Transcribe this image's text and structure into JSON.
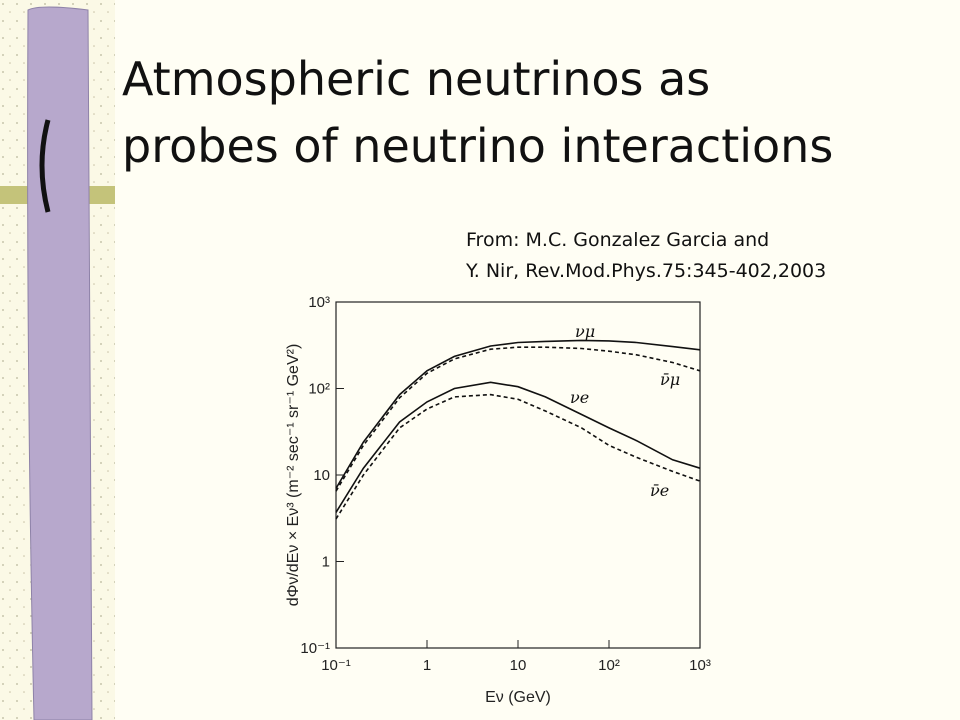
{
  "slide": {
    "title": [
      "Atmospheric neutrinos as",
      "probes of neutrino interactions"
    ],
    "source": [
      "From:  M.C. Gonzalez Garcia and",
      "Y. Nir, Rev.Mod.Phys.75:345-402,2003"
    ]
  },
  "chart_data": {
    "type": "line",
    "log_x": true,
    "log_y": true,
    "x_label": "Eν (GeV)",
    "y_label": "dΦν/dEν × Eν³ (m⁻² sec⁻¹ sr⁻¹ GeV²)",
    "x": [
      0.1,
      0.2,
      0.5,
      1,
      2,
      5,
      10,
      20,
      50,
      100,
      200,
      500,
      1000
    ],
    "series": [
      {
        "name": "νμ",
        "color": "#111111",
        "dash": false,
        "values": [
          7,
          24,
          85,
          160,
          235,
          310,
          340,
          350,
          360,
          355,
          340,
          305,
          280
        ]
      },
      {
        "name": "ν̄μ",
        "color": "#111111",
        "dash": true,
        "values": [
          6.5,
          22,
          78,
          150,
          220,
          285,
          300,
          300,
          290,
          270,
          245,
          200,
          160
        ]
      },
      {
        "name": "νe",
        "color": "#111111",
        "dash": false,
        "values": [
          3.7,
          12,
          41,
          70,
          100,
          118,
          105,
          80,
          50,
          35,
          25,
          15,
          12
        ]
      },
      {
        "name": "ν̄e",
        "color": "#111111",
        "dash": true,
        "values": [
          3.1,
          10,
          35,
          58,
          80,
          85,
          75,
          55,
          35,
          22,
          16,
          11,
          8.5
        ]
      }
    ],
    "xlim": [
      0.1,
      1000
    ],
    "ylim": [
      0.1,
      1000
    ],
    "xticks": [
      {
        "value": 0.1,
        "label": "10⁻¹"
      },
      1,
      10,
      {
        "value": 100,
        "label": "10²"
      },
      {
        "value": 1000,
        "label": "10³"
      }
    ],
    "yticks": [
      {
        "value": 0.1,
        "label": "10⁻¹"
      },
      1,
      10,
      {
        "value": 100,
        "label": "10²"
      },
      {
        "value": 1000,
        "label": "10³"
      }
    ]
  }
}
